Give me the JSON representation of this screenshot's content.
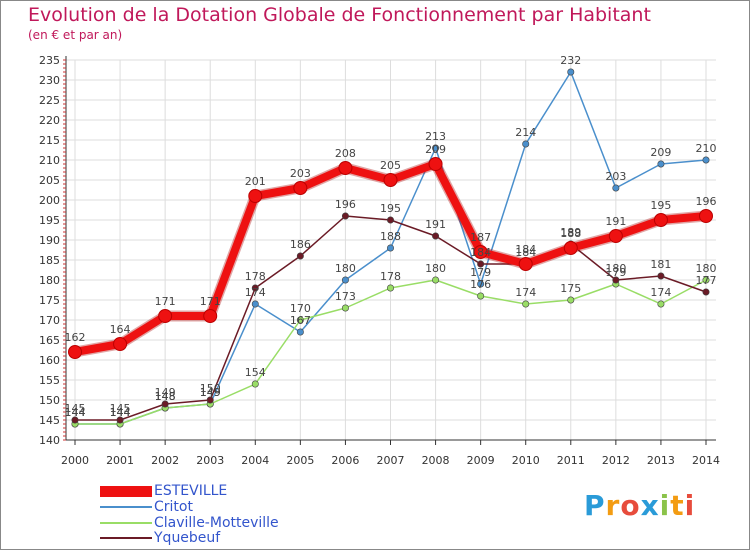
{
  "header": {
    "title": "Evolution de la Dotation Globale de Fonctionnement par Habitant",
    "subtitle": "(en € et par an)"
  },
  "chart_data": {
    "type": "line",
    "title": "Evolution de la Dotation Globale de Fonctionnement par Habitant",
    "subtitle": "(en € et par an)",
    "xlabel": "",
    "ylabel": "",
    "ylim": [
      140,
      235
    ],
    "y_ticks": [
      140,
      145,
      150,
      155,
      160,
      165,
      170,
      175,
      180,
      185,
      190,
      195,
      200,
      205,
      210,
      215,
      220,
      225,
      230,
      235
    ],
    "grid": true,
    "legend_position": "bottom-left",
    "categories": [
      "2000",
      "2001",
      "2002",
      "2003",
      "2004",
      "2005",
      "2006",
      "2007",
      "2008",
      "2009",
      "2010",
      "2011",
      "2012",
      "2013",
      "2014"
    ],
    "series": [
      {
        "name": "Critot",
        "color": "#4a8fcc",
        "values": [
          144,
          144,
          148,
          149,
          174,
          167,
          180,
          188,
          213,
          179,
          214,
          232,
          203,
          209,
          210
        ]
      },
      {
        "name": "Claville-Motteville",
        "color": "#99dd66",
        "values": [
          144,
          144,
          148,
          149,
          154,
          170,
          173,
          178,
          180,
          176,
          174,
          175,
          179,
          174,
          180
        ]
      },
      {
        "name": "Yquebeuf",
        "color": "#6b1b26",
        "values": [
          145,
          145,
          149,
          150,
          178,
          186,
          196,
          195,
          191,
          184,
          184,
          189,
          180,
          181,
          177
        ]
      },
      {
        "name": "ESTEVILLE",
        "color": "#ee1111",
        "values": [
          162,
          164,
          171,
          171,
          201,
          203,
          208,
          205,
          209,
          187,
          184,
          188,
          191,
          195,
          196
        ]
      }
    ]
  },
  "logo": {
    "text": "Proxiti"
  }
}
